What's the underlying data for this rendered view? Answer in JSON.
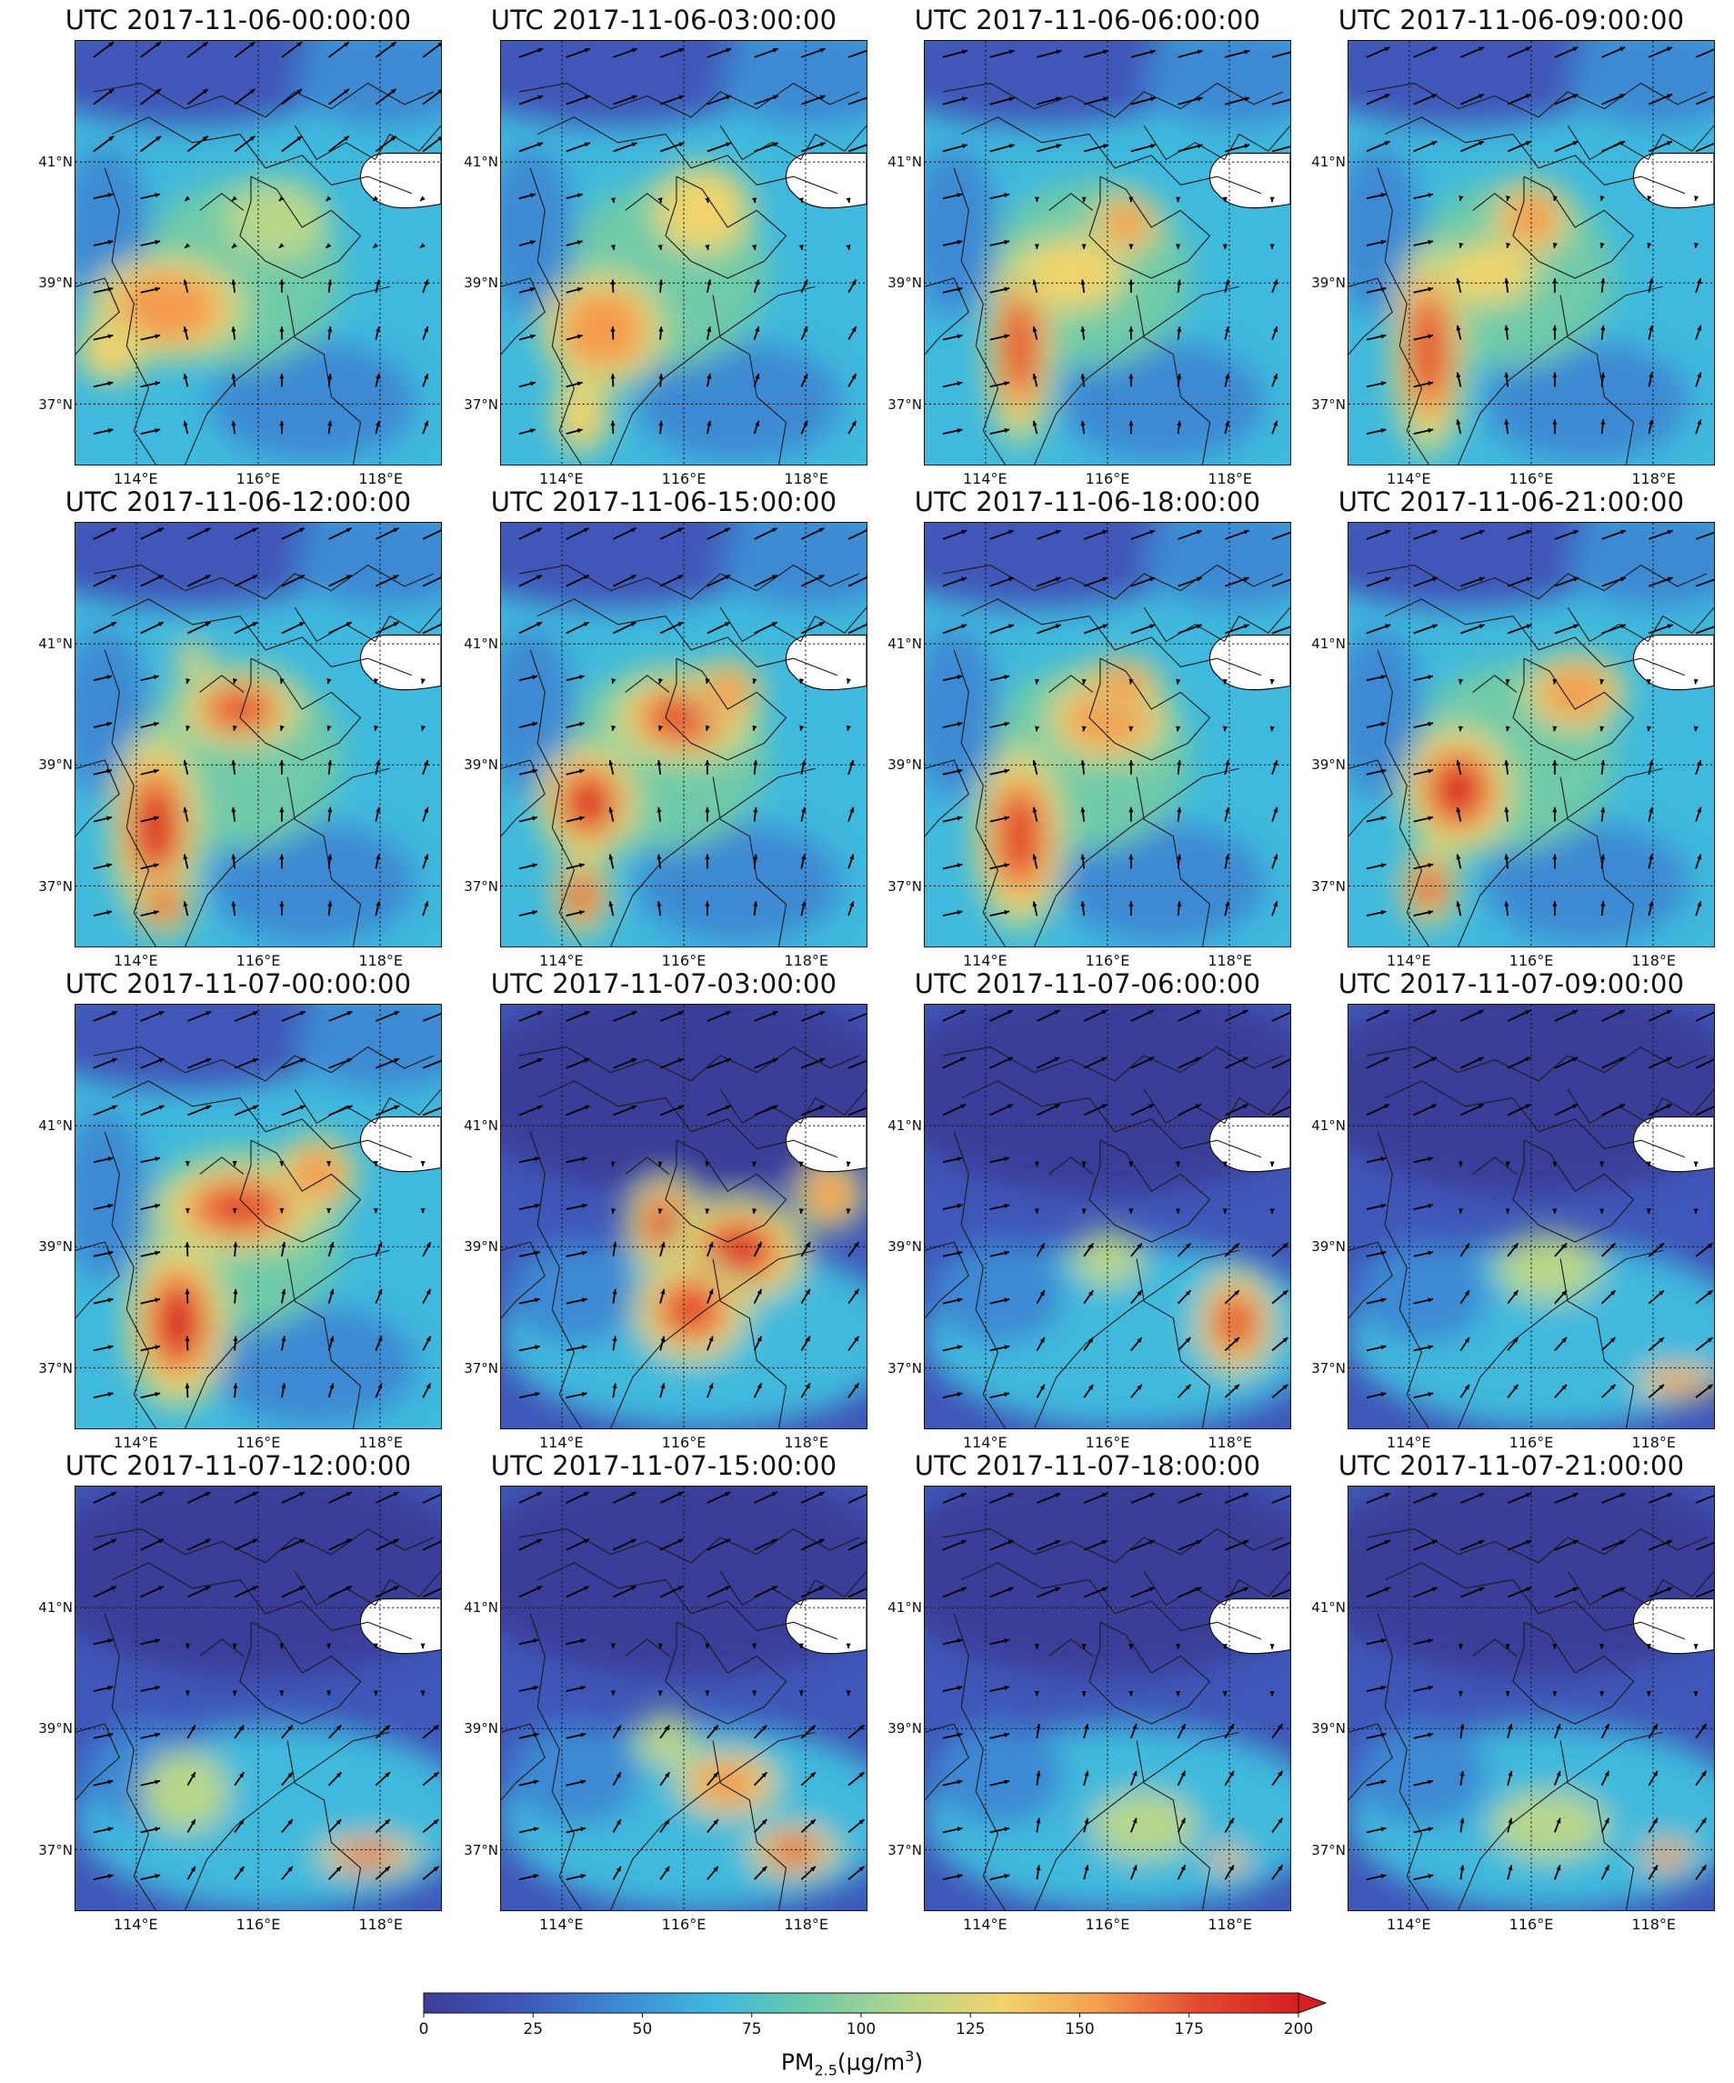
{
  "figure": {
    "panels": [
      {
        "title": "UTC 2017-11-06-00:00:00",
        "hotspots": [
          [
            0.25,
            0.63,
            0.28,
            0.16,
            0.55
          ],
          [
            0.55,
            0.42,
            0.18,
            0.12,
            0.25
          ],
          [
            0.1,
            0.73,
            0.12,
            0.1,
            0.3
          ]
        ],
        "wind": [
          -30,
          8
        ],
        "lower_wind": [
          0,
          20
        ],
        "upper_wind": [
          20,
          -15
        ]
      },
      {
        "title": "UTC 2017-11-06-03:00:00",
        "hotspots": [
          [
            0.28,
            0.68,
            0.22,
            0.18,
            0.55
          ],
          [
            0.55,
            0.4,
            0.18,
            0.14,
            0.45
          ],
          [
            0.22,
            0.88,
            0.1,
            0.12,
            0.35
          ]
        ],
        "wind": [
          -25,
          10
        ],
        "lower_wind": [
          5,
          20
        ],
        "upper_wind": [
          28,
          -10
        ]
      },
      {
        "title": "UTC 2017-11-06-06:00:00",
        "hotspots": [
          [
            0.26,
            0.72,
            0.12,
            0.3,
            0.75
          ],
          [
            0.55,
            0.43,
            0.12,
            0.1,
            0.55
          ],
          [
            0.4,
            0.55,
            0.2,
            0.12,
            0.3
          ]
        ],
        "wind": [
          -30,
          5
        ],
        "lower_wind": [
          0,
          20
        ],
        "upper_wind": [
          30,
          -8
        ]
      },
      {
        "title": "UTC 2017-11-06-09:00:00",
        "hotspots": [
          [
            0.22,
            0.73,
            0.13,
            0.32,
            0.85
          ],
          [
            0.5,
            0.42,
            0.14,
            0.12,
            0.5
          ],
          [
            0.38,
            0.55,
            0.18,
            0.1,
            0.35
          ]
        ],
        "wind": [
          -30,
          5
        ],
        "lower_wind": [
          0,
          22
        ],
        "upper_wind": [
          28,
          -12
        ]
      },
      {
        "title": "UTC 2017-11-06-12:00:00",
        "hotspots": [
          [
            0.22,
            0.72,
            0.16,
            0.3,
            0.9
          ],
          [
            0.45,
            0.44,
            0.22,
            0.12,
            0.8
          ],
          [
            0.32,
            0.32,
            0.06,
            0.05,
            0.45
          ],
          [
            0.24,
            0.9,
            0.1,
            0.1,
            0.7
          ]
        ],
        "wind": [
          -28,
          8
        ],
        "lower_wind": [
          0,
          22
        ],
        "upper_wind": [
          25,
          -12
        ]
      },
      {
        "title": "UTC 2017-11-06-15:00:00",
        "hotspots": [
          [
            0.24,
            0.66,
            0.18,
            0.18,
            0.9
          ],
          [
            0.5,
            0.46,
            0.26,
            0.14,
            0.75
          ],
          [
            0.22,
            0.88,
            0.1,
            0.12,
            0.8
          ],
          [
            0.62,
            0.4,
            0.12,
            0.1,
            0.5
          ]
        ],
        "wind": [
          -28,
          8
        ],
        "lower_wind": [
          0,
          22
        ],
        "upper_wind": [
          25,
          -12
        ]
      },
      {
        "title": "UTC 2017-11-06-18:00:00",
        "hotspots": [
          [
            0.26,
            0.74,
            0.16,
            0.28,
            0.85
          ],
          [
            0.5,
            0.46,
            0.22,
            0.14,
            0.65
          ],
          [
            0.54,
            0.38,
            0.14,
            0.08,
            0.5
          ]
        ],
        "wind": [
          -30,
          8
        ],
        "lower_wind": [
          0,
          22
        ],
        "upper_wind": [
          28,
          -10
        ]
      },
      {
        "title": "UTC 2017-11-06-21:00:00",
        "hotspots": [
          [
            0.3,
            0.63,
            0.2,
            0.2,
            1.0
          ],
          [
            0.22,
            0.86,
            0.1,
            0.12,
            0.8
          ],
          [
            0.62,
            0.4,
            0.18,
            0.12,
            0.55
          ]
        ],
        "wind": [
          -30,
          8
        ],
        "lower_wind": [
          0,
          22
        ],
        "upper_wind": [
          28,
          -10
        ]
      },
      {
        "title": "UTC 2017-11-07-00:00:00",
        "hotspots": [
          [
            0.45,
            0.48,
            0.3,
            0.14,
            0.85
          ],
          [
            0.28,
            0.75,
            0.18,
            0.26,
            0.9
          ],
          [
            0.66,
            0.4,
            0.14,
            0.12,
            0.6
          ]
        ],
        "wind": [
          -30,
          10
        ],
        "lower_wind": [
          5,
          22
        ],
        "upper_wind": [
          30,
          -12
        ]
      },
      {
        "title": "UTC 2017-11-07-03:00:00",
        "hotspots": [
          [
            0.45,
            0.52,
            0.14,
            0.14,
            0.95
          ],
          [
            0.65,
            0.58,
            0.24,
            0.16,
            1.0
          ],
          [
            0.52,
            0.72,
            0.2,
            0.16,
            0.8
          ],
          [
            0.9,
            0.45,
            0.12,
            0.1,
            0.5
          ]
        ],
        "wind": [
          -32,
          12
        ],
        "lower_wind": [
          10,
          22
        ],
        "upper_wind": [
          30,
          -12
        ]
      },
      {
        "title": "UTC 2017-11-07-06:00:00",
        "hotspots": [
          [
            0.85,
            0.75,
            0.14,
            0.16,
            0.75
          ],
          [
            0.5,
            0.6,
            0.12,
            0.08,
            0.2
          ]
        ],
        "wind": [
          -30,
          14
        ],
        "lower_wind": [
          20,
          20
        ],
        "upper_wind": [
          30,
          -14
        ]
      },
      {
        "title": "UTC 2017-11-07-09:00:00",
        "hotspots": [
          [
            0.9,
            0.89,
            0.15,
            0.05,
            0.5
          ],
          [
            0.55,
            0.62,
            0.18,
            0.1,
            0.15
          ]
        ],
        "wind": [
          -30,
          14
        ],
        "lower_wind": [
          22,
          20
        ],
        "upper_wind": [
          30,
          -14
        ]
      },
      {
        "title": "UTC 2017-11-07-12:00:00",
        "hotspots": [
          [
            0.8,
            0.87,
            0.18,
            0.06,
            0.75
          ],
          [
            0.3,
            0.72,
            0.15,
            0.12,
            0.15
          ]
        ],
        "wind": [
          -30,
          14
        ],
        "lower_wind": [
          20,
          20
        ],
        "upper_wind": [
          30,
          -14
        ]
      },
      {
        "title": "UTC 2017-11-07-15:00:00",
        "hotspots": [
          [
            0.8,
            0.86,
            0.16,
            0.08,
            0.8
          ],
          [
            0.62,
            0.7,
            0.18,
            0.1,
            0.5
          ],
          [
            0.45,
            0.6,
            0.1,
            0.08,
            0.25
          ]
        ],
        "wind": [
          -30,
          14
        ],
        "lower_wind": [
          20,
          20
        ],
        "upper_wind": [
          30,
          -14
        ]
      },
      {
        "title": "UTC 2017-11-07-18:00:00",
        "hotspots": [
          [
            0.83,
            0.88,
            0.07,
            0.04,
            0.5
          ],
          [
            0.6,
            0.8,
            0.18,
            0.1,
            0.1
          ]
        ],
        "wind": [
          -30,
          14
        ],
        "lower_wind": [
          10,
          22
        ],
        "upper_wind": [
          30,
          -12
        ]
      },
      {
        "title": "UTC 2017-11-07-21:00:00",
        "hotspots": [
          [
            0.87,
            0.87,
            0.09,
            0.05,
            0.75
          ],
          [
            0.55,
            0.8,
            0.2,
            0.1,
            0.12
          ]
        ],
        "wind": [
          -30,
          14
        ],
        "lower_wind": [
          10,
          22
        ],
        "upper_wind": [
          30,
          -12
        ]
      }
    ],
    "lat_labels": [
      "41°N",
      "39°N",
      "37°N"
    ],
    "lon_labels": [
      "114°E",
      "116°E",
      "118°E"
    ],
    "lon_range": [
      113,
      119
    ],
    "lat_range": [
      36,
      43
    ],
    "colorbar": {
      "ticks": [
        "0",
        "25",
        "50",
        "75",
        "100",
        "125",
        "150",
        "175",
        "200"
      ],
      "range": [
        0,
        200
      ],
      "extend": "max",
      "label": "PM",
      "label_sub": "2.5",
      "label_units": "(μg/m",
      "label_sup": "3",
      "label_close": ")",
      "colors": [
        "#3b3c99",
        "#3f57b8",
        "#3e89d3",
        "#3fb9dd",
        "#6fcaa9",
        "#b8d78a",
        "#f1d36b",
        "#f49a4e",
        "#e3472f",
        "#d42020"
      ]
    },
    "sea_color": "#ffffff",
    "border_color": "#1a1a1a",
    "grid_style": "dotted"
  }
}
